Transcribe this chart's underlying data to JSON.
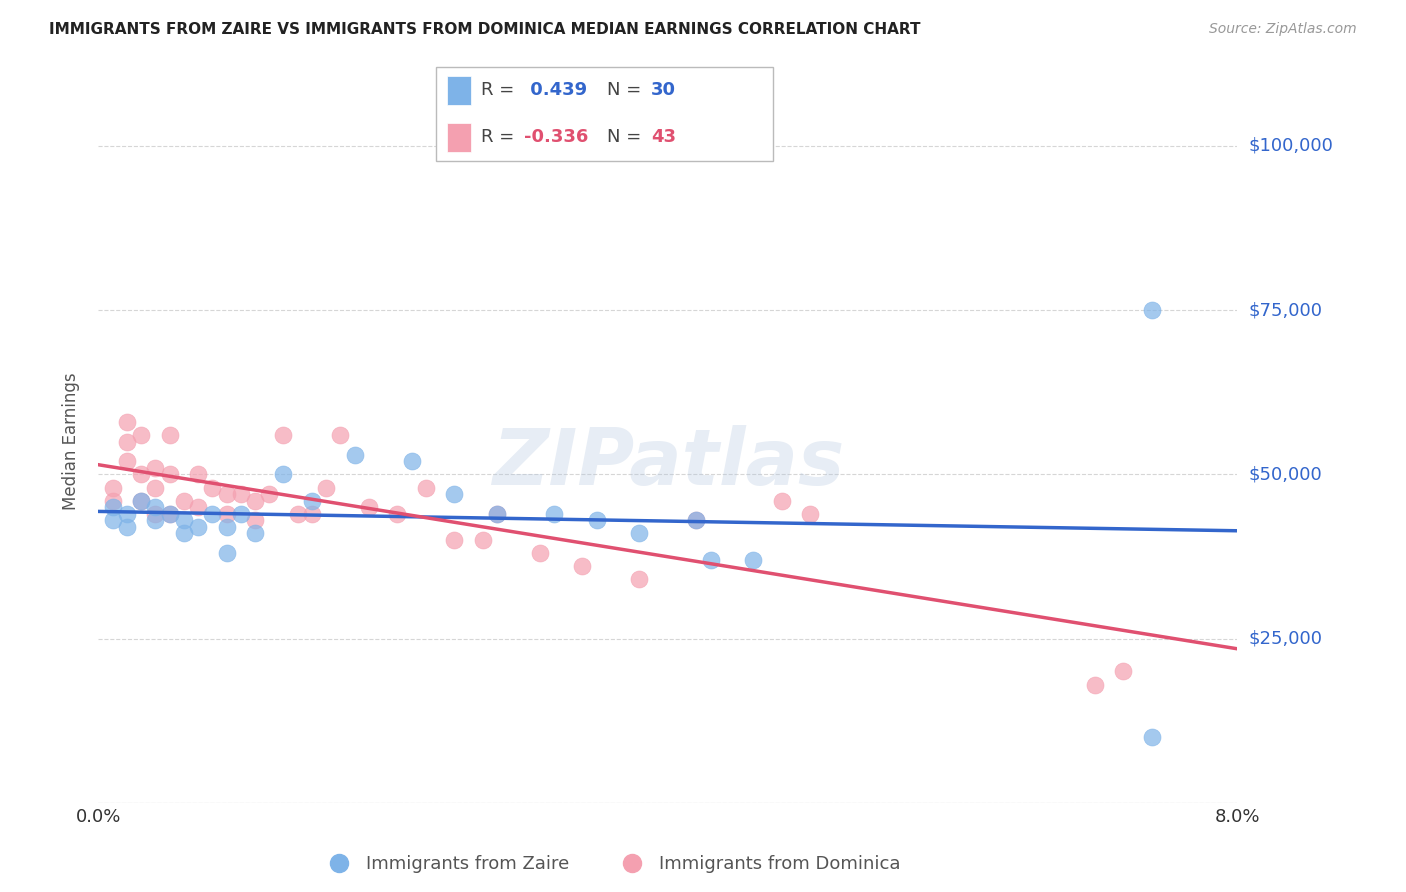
{
  "title": "IMMIGRANTS FROM ZAIRE VS IMMIGRANTS FROM DOMINICA MEDIAN EARNINGS CORRELATION CHART",
  "source": "Source: ZipAtlas.com",
  "ylabel": "Median Earnings",
  "xlim": [
    0.0,
    0.08
  ],
  "ylim": [
    0,
    110000
  ],
  "yticks": [
    0,
    25000,
    50000,
    75000,
    100000
  ],
  "ytick_labels": [
    "",
    "$25,000",
    "$50,000",
    "$75,000",
    "$100,000"
  ],
  "xticks": [
    0.0,
    0.01,
    0.02,
    0.03,
    0.04,
    0.05,
    0.06,
    0.07,
    0.08
  ],
  "xtick_labels": [
    "0.0%",
    "",
    "",
    "",
    "",
    "",
    "",
    "",
    "8.0%"
  ],
  "background_color": "#ffffff",
  "grid_color": "#cccccc",
  "zaire_color": "#7eb3e8",
  "dominica_color": "#f4a0b0",
  "zaire_line_color": "#3366cc",
  "dominica_line_color": "#e05070",
  "watermark": "ZIPatlas",
  "zaire_x": [
    0.001,
    0.001,
    0.002,
    0.002,
    0.003,
    0.004,
    0.004,
    0.005,
    0.006,
    0.006,
    0.007,
    0.008,
    0.009,
    0.009,
    0.01,
    0.011,
    0.013,
    0.015,
    0.018,
    0.022,
    0.025,
    0.028,
    0.032,
    0.035,
    0.038,
    0.042,
    0.043,
    0.046,
    0.074,
    0.074
  ],
  "zaire_y": [
    45000,
    43000,
    44000,
    42000,
    46000,
    45000,
    43000,
    44000,
    43000,
    41000,
    42000,
    44000,
    42000,
    38000,
    44000,
    41000,
    50000,
    46000,
    53000,
    52000,
    47000,
    44000,
    44000,
    43000,
    41000,
    43000,
    37000,
    37000,
    10000,
    75000
  ],
  "dominica_x": [
    0.001,
    0.001,
    0.002,
    0.002,
    0.002,
    0.003,
    0.003,
    0.003,
    0.004,
    0.004,
    0.004,
    0.005,
    0.005,
    0.005,
    0.006,
    0.007,
    0.007,
    0.008,
    0.009,
    0.009,
    0.01,
    0.011,
    0.011,
    0.012,
    0.013,
    0.014,
    0.015,
    0.016,
    0.017,
    0.019,
    0.021,
    0.023,
    0.025,
    0.027,
    0.028,
    0.031,
    0.034,
    0.038,
    0.042,
    0.048,
    0.05,
    0.07,
    0.072
  ],
  "dominica_y": [
    48000,
    46000,
    58000,
    55000,
    52000,
    56000,
    50000,
    46000,
    51000,
    48000,
    44000,
    56000,
    50000,
    44000,
    46000,
    50000,
    45000,
    48000,
    47000,
    44000,
    47000,
    46000,
    43000,
    47000,
    56000,
    44000,
    44000,
    48000,
    56000,
    45000,
    44000,
    48000,
    40000,
    40000,
    44000,
    38000,
    36000,
    34000,
    43000,
    46000,
    44000,
    18000,
    20000
  ]
}
